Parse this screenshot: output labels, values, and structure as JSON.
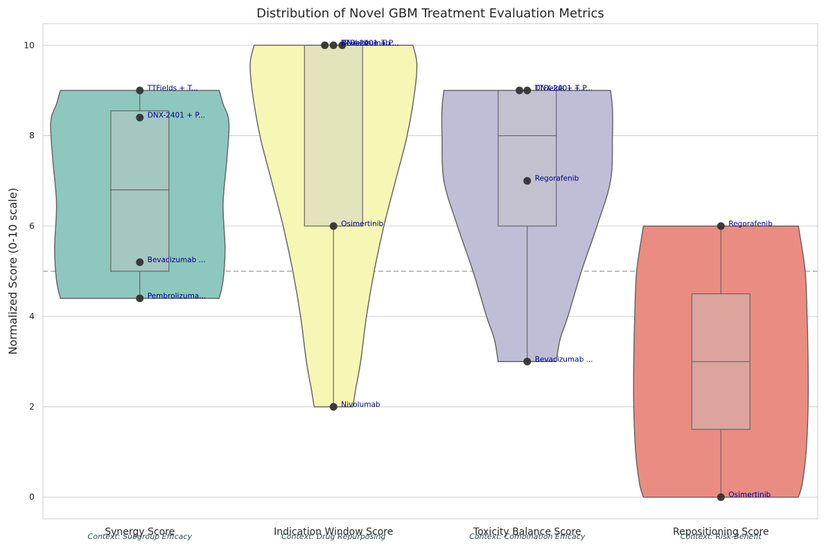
{
  "chart_data": {
    "type": "violin",
    "title": "Distribution of Novel GBM Treatment Evaluation Metrics",
    "xlabel": "",
    "ylabel": "Normalized Score (0-10 scale)",
    "ylim": [
      -0.48,
      10.48
    ],
    "yticks": [
      0,
      2,
      4,
      6,
      8,
      10
    ],
    "reference_line": 5,
    "grid": "horizontal",
    "categories": [
      {
        "name": "Synergy Score",
        "context": "Context: Subgroup Efficacy",
        "color": "#8dc7bd",
        "box": {
          "min": 4.4,
          "q1": 5.0,
          "median": 6.8,
          "q3": 8.55,
          "max": 9.0
        },
        "violin": {
          "range": [
            4.4,
            9.0
          ],
          "widths": [
            [
              4.4,
              0.82
            ],
            [
              4.8,
              0.86
            ],
            [
              5.5,
              0.88
            ],
            [
              6.5,
              0.86
            ],
            [
              7.5,
              0.9
            ],
            [
              8.3,
              0.92
            ],
            [
              8.7,
              0.86
            ],
            [
              9.0,
              0.82
            ]
          ]
        },
        "points": [
          {
            "label": "TTFields + T...",
            "value": 9.0,
            "offset": 0
          },
          {
            "label": "DNX-2401 + P...",
            "value": 8.4,
            "offset": 0
          },
          {
            "label": "Bevacizumab ...",
            "value": 5.2,
            "offset": 0
          },
          {
            "label": "Pembrolizuma...",
            "value": 4.4,
            "offset": 0
          }
        ]
      },
      {
        "name": "Indication Window Score",
        "context": "Context: Drug Repurposing",
        "color": "#f6f6b5",
        "box": {
          "min": 2.0,
          "q1": 6.0,
          "median": 10.0,
          "q3": 10.0,
          "max": 10.0
        },
        "violin": {
          "range": [
            2.0,
            10.0
          ],
          "widths": [
            [
              2.0,
              0.2
            ],
            [
              2.4,
              0.23
            ],
            [
              3.0,
              0.28
            ],
            [
              4.0,
              0.34
            ],
            [
              5.0,
              0.42
            ],
            [
              6.0,
              0.52
            ],
            [
              7.0,
              0.64
            ],
            [
              8.0,
              0.76
            ],
            [
              9.0,
              0.84
            ],
            [
              9.6,
              0.86
            ],
            [
              10.0,
              0.82
            ]
          ]
        },
        "points": [
          {
            "label": "Osimertinib",
            "value": 6.0,
            "offset": 0
          },
          {
            "label": "Nivolumab",
            "value": 2.0,
            "offset": 0
          },
          {
            "label": "TTFields + T...",
            "value": 10.0,
            "offset": -0.045
          },
          {
            "label": "DNX-2401 + P...",
            "value": 10.0,
            "offset": 0
          },
          {
            "label": "Bevacizumab",
            "value": 10.0,
            "offset": 0.045
          }
        ]
      },
      {
        "name": "Toxicity Balance Score",
        "context": "Context: Combination Efficacy",
        "color": "#c0bdd6",
        "box": {
          "min": 3.0,
          "q1": 6.0,
          "median": 8.0,
          "q3": 9.0,
          "max": 9.0
        },
        "violin": {
          "range": [
            3.0,
            9.0
          ],
          "widths": [
            [
              3.0,
              0.3
            ],
            [
              3.5,
              0.34
            ],
            [
              4.0,
              0.42
            ],
            [
              5.0,
              0.56
            ],
            [
              6.0,
              0.72
            ],
            [
              7.0,
              0.86
            ],
            [
              8.0,
              0.88
            ],
            [
              8.6,
              0.88
            ],
            [
              9.0,
              0.86
            ]
          ]
        },
        "points": [
          {
            "label": "TTFields + T...",
            "value": 9.0,
            "offset": -0.04
          },
          {
            "label": "DNX-2401 + P...",
            "value": 9.0,
            "offset": 0
          },
          {
            "label": "Regorafenib",
            "value": 7.0,
            "offset": 0
          },
          {
            "label": "Bevacizumab ...",
            "value": 3.0,
            "offset": 0
          }
        ]
      },
      {
        "name": "Repositioning Score",
        "context": "Context: Risk-Benefit",
        "color": "#ea8c81",
        "box": {
          "min": 0.0,
          "q1": 1.5,
          "median": 3.0,
          "q3": 4.5,
          "max": 6.0
        },
        "violin": {
          "range": [
            0.0,
            6.0
          ],
          "widths": [
            [
              0.0,
              0.8
            ],
            [
              0.3,
              0.84
            ],
            [
              1.0,
              0.88
            ],
            [
              2.0,
              0.9
            ],
            [
              3.0,
              0.9
            ],
            [
              4.0,
              0.89
            ],
            [
              5.0,
              0.87
            ],
            [
              6.0,
              0.8
            ]
          ]
        },
        "points": [
          {
            "label": "Regorafenib",
            "value": 6.0,
            "offset": 0
          },
          {
            "label": "Osimertinib",
            "value": 0.0,
            "offset": 0
          }
        ]
      }
    ]
  }
}
